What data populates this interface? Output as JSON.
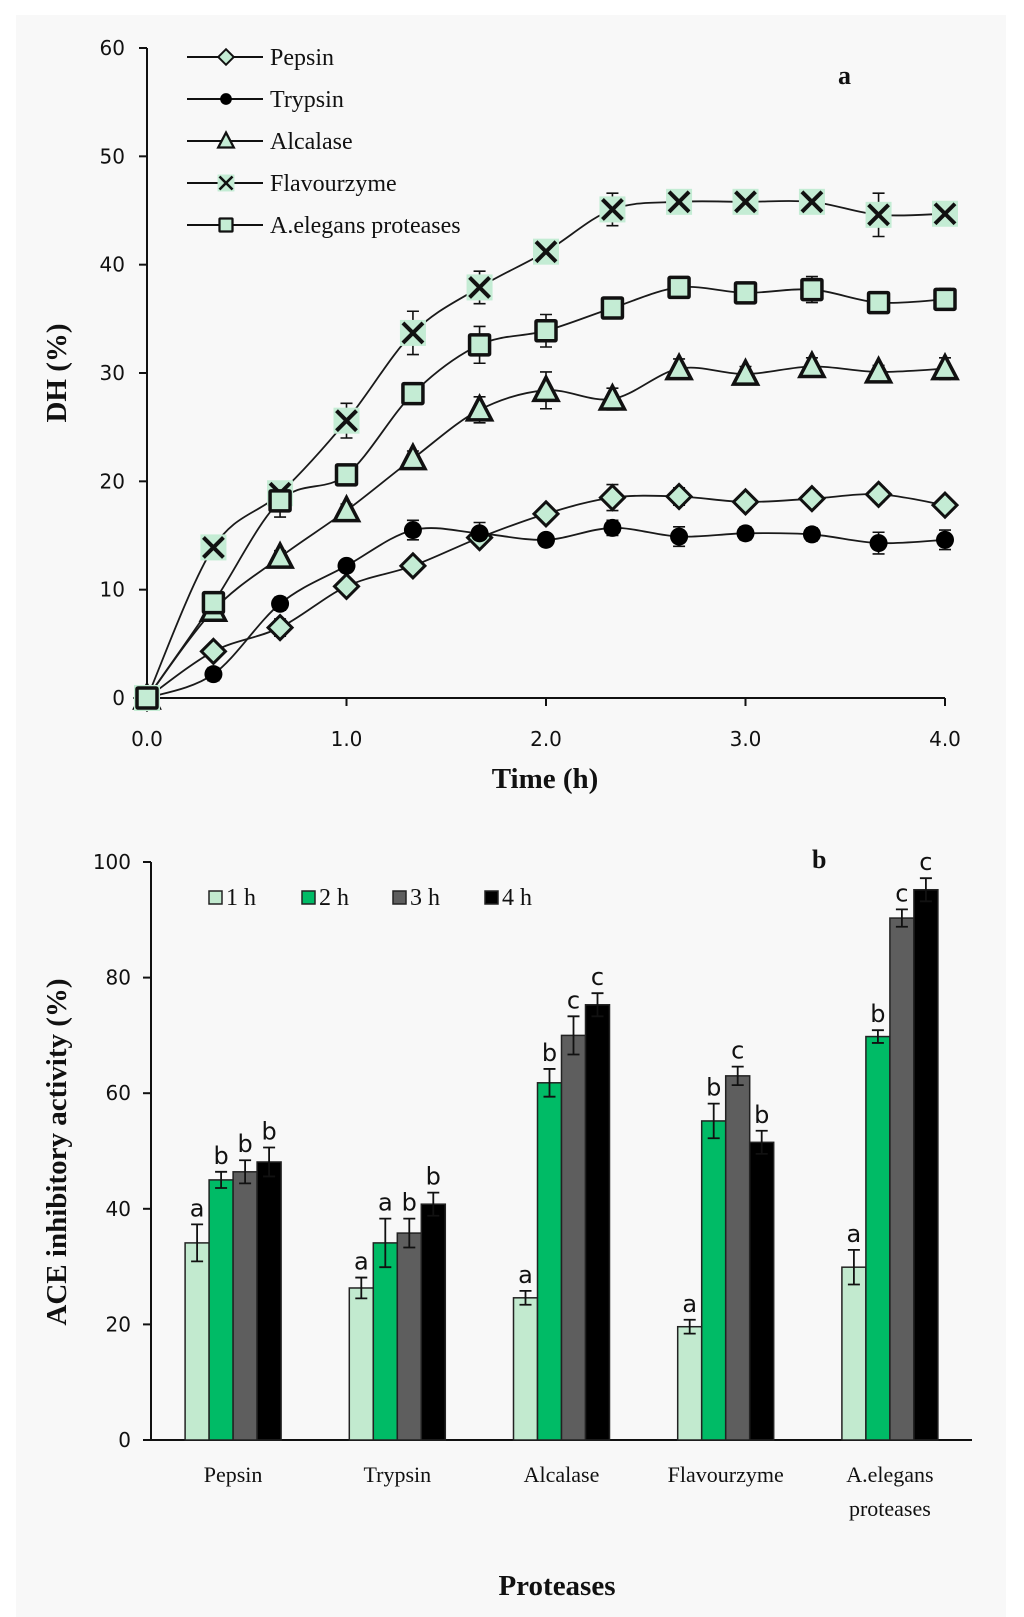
{
  "chart_data": [
    {
      "type": "line",
      "panel_label": "a",
      "title": "",
      "xlabel": "Time (h)",
      "ylabel": "DH (%)",
      "xlim": [
        0,
        4
      ],
      "ylim": [
        0,
        60
      ],
      "xticks": [
        0,
        1,
        2,
        3,
        4
      ],
      "xtick_labels": [
        "0.0",
        "1.0",
        "2.0",
        "3.0",
        "4.0"
      ],
      "yticks": [
        0,
        10,
        20,
        30,
        40,
        50,
        60
      ],
      "ytick_labels": [
        "0",
        "10",
        "20",
        "30",
        "40",
        "50",
        "60"
      ],
      "grid": false,
      "legend_position": "top-left",
      "x": [
        0,
        0.333,
        0.667,
        1.0,
        1.333,
        1.667,
        2.0,
        2.333,
        2.667,
        3.0,
        3.333,
        3.667,
        4.0
      ],
      "series": [
        {
          "name": "Pepsin",
          "marker": "diamond",
          "values": [
            0,
            4.3,
            6.5,
            10.3,
            12.2,
            14.8,
            17.0,
            18.5,
            18.6,
            18.1,
            18.4,
            18.8,
            17.8
          ],
          "errors": [
            0,
            0.5,
            0.8,
            0.6,
            0.6,
            0.7,
            0.6,
            1.2,
            0.8,
            0.5,
            0.7,
            0.7,
            0.5
          ]
        },
        {
          "name": "Trypsin",
          "marker": "circle",
          "values": [
            0,
            2.2,
            8.7,
            12.2,
            15.5,
            15.2,
            14.6,
            15.7,
            14.9,
            15.2,
            15.1,
            14.3,
            14.6
          ],
          "errors": [
            0,
            0.6,
            0.6,
            0.5,
            0.9,
            1.0,
            0.5,
            0.7,
            0.9,
            0.6,
            0.6,
            1.0,
            0.9
          ]
        },
        {
          "name": "Alcalase",
          "marker": "triangle",
          "values": [
            0,
            8.1,
            13.0,
            17.3,
            22.1,
            26.6,
            28.4,
            27.6,
            30.4,
            29.9,
            30.6,
            30.1,
            30.4
          ],
          "errors": [
            0,
            0.5,
            0.6,
            0.6,
            0.7,
            1.2,
            1.7,
            1.0,
            0.9,
            0.7,
            0.8,
            0.6,
            1.0
          ]
        },
        {
          "name": "Flavourzyme",
          "marker": "x",
          "values": [
            0,
            13.9,
            18.9,
            25.6,
            33.7,
            37.9,
            41.2,
            45.1,
            45.8,
            45.8,
            45.8,
            44.6,
            44.7
          ],
          "errors": [
            0,
            0.5,
            0.8,
            1.6,
            2.0,
            1.5,
            0.6,
            1.5,
            0.5,
            1.0,
            0.5,
            2.0,
            0.5
          ]
        },
        {
          "name": "A.elegans proteases",
          "marker": "square",
          "values": [
            0,
            8.8,
            18.2,
            20.6,
            28.1,
            32.6,
            33.9,
            36.0,
            37.9,
            37.4,
            37.7,
            36.5,
            36.8
          ],
          "errors": [
            0,
            0.7,
            1.5,
            0.8,
            0.9,
            1.7,
            1.5,
            0.9,
            0.6,
            0.5,
            1.2,
            0.5,
            1.0
          ]
        }
      ],
      "colors": {
        "marker_fill": "#c4ecd4",
        "line": "#1a1a1a"
      }
    },
    {
      "type": "bar",
      "panel_label": "b",
      "title": "",
      "xlabel": "Proteases",
      "ylabel": "ACE inhibitory activity (%)",
      "ylim": [
        0,
        100
      ],
      "yticks": [
        0,
        20,
        40,
        60,
        80,
        100
      ],
      "ytick_labels": [
        "0",
        "20",
        "40",
        "60",
        "80",
        "100"
      ],
      "grid": false,
      "legend_position": "top-left",
      "categories": [
        "Pepsin",
        "Trypsin",
        "Alcalase",
        "Flavourzyme",
        "A.elegans proteases"
      ],
      "category_lines": [
        [
          "Pepsin"
        ],
        [
          "Trypsin"
        ],
        [
          "Alcalase"
        ],
        [
          "Flavourzyme"
        ],
        [
          "A.elegans",
          "proteases"
        ]
      ],
      "series": [
        {
          "name": "1 h",
          "color": "#c2eacf",
          "values": [
            34.1,
            26.3,
            24.6,
            19.6,
            29.9
          ],
          "errors": [
            3.2,
            1.8,
            1.2,
            1.2,
            3.0
          ],
          "letters": [
            "a",
            "a",
            "a",
            "a",
            "a"
          ]
        },
        {
          "name": "2 h",
          "color": "#00bb66",
          "values": [
            45.0,
            34.1,
            61.8,
            55.2,
            69.8
          ],
          "errors": [
            1.4,
            4.2,
            2.4,
            3.0,
            1.1
          ],
          "letters": [
            "b",
            "a",
            "b",
            "b",
            "b"
          ]
        },
        {
          "name": "3 h",
          "color": "#5e5e5e",
          "values": [
            46.4,
            35.8,
            70.0,
            63.0,
            90.3
          ],
          "errors": [
            2.0,
            2.5,
            3.3,
            1.6,
            1.5
          ],
          "letters": [
            "b",
            "b",
            "c",
            "c",
            "c"
          ]
        },
        {
          "name": "4 h",
          "color": "#000000",
          "values": [
            48.1,
            40.8,
            75.3,
            51.5,
            95.2
          ],
          "errors": [
            2.5,
            2.0,
            2.0,
            2.0,
            2.0
          ],
          "letters": [
            "b",
            "b",
            "c",
            "b",
            "c"
          ]
        }
      ]
    }
  ]
}
